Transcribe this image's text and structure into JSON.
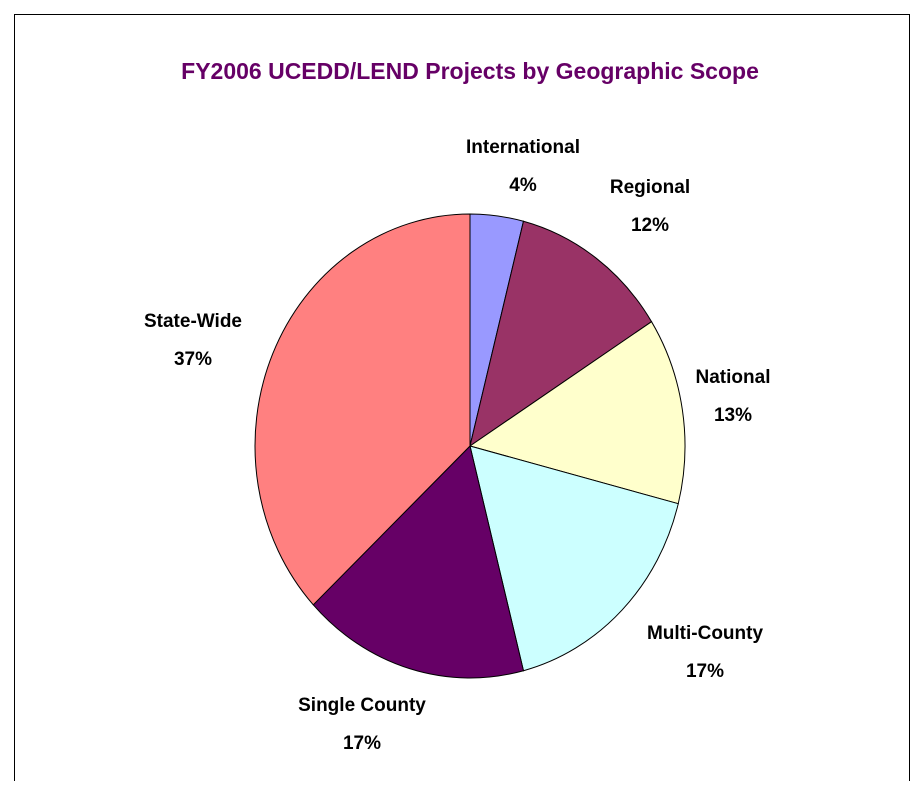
{
  "chart_data": {
    "type": "pie",
    "title": "FY2006 UCEDD/LEND Projects by Geographic Scope",
    "categories": [
      "International",
      "Regional",
      "National",
      "Multi-County",
      "Single County",
      "State-Wide"
    ],
    "values": [
      4,
      12,
      13,
      17,
      17,
      37
    ],
    "value_labels": [
      "4%",
      "12%",
      "13%",
      "17%",
      "17%",
      "37%"
    ],
    "colors": [
      "#9999ff",
      "#993366",
      "#ffffcc",
      "#ccffff",
      "#660066",
      "#ff8080"
    ]
  }
}
